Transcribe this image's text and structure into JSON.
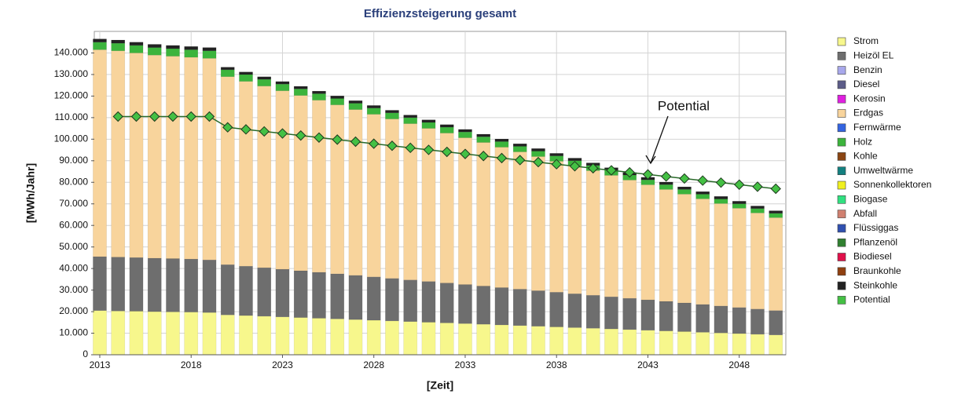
{
  "chart_data": {
    "type": "bar",
    "stacked": true,
    "title": "Effizienzsteigerung gesamt",
    "x_label": "[Zeit]",
    "y_label": "[MWh/Jahr]",
    "annotation": "Potential",
    "x": [
      2013,
      2014,
      2015,
      2016,
      2017,
      2018,
      2019,
      2020,
      2021,
      2022,
      2023,
      2024,
      2025,
      2026,
      2027,
      2028,
      2029,
      2030,
      2031,
      2032,
      2033,
      2034,
      2035,
      2036,
      2037,
      2038,
      2039,
      2040,
      2041,
      2042,
      2043,
      2044,
      2045,
      2046,
      2047,
      2048,
      2049,
      2050
    ],
    "xlim": [
      2012.7,
      2050.55
    ],
    "xticks": [
      2013,
      2018,
      2023,
      2028,
      2033,
      2038,
      2043,
      2048
    ],
    "ylim": [
      0,
      150000
    ],
    "yticks": [
      0,
      {
        "value": 10000,
        "label": "10.000"
      },
      {
        "value": 20000,
        "label": "20.000"
      },
      {
        "value": 30000,
        "label": "30.000"
      },
      {
        "value": 40000,
        "label": "40.000"
      },
      {
        "value": 50000,
        "label": "50.000"
      },
      {
        "value": 60000,
        "label": "60.000"
      },
      {
        "value": 70000,
        "label": "70.000"
      },
      {
        "value": 80000,
        "label": "80.000"
      },
      {
        "value": 90000,
        "label": "90.000"
      },
      {
        "value": 100000,
        "label": "100.000"
      },
      {
        "value": 110000,
        "label": "110.000"
      },
      {
        "value": 120000,
        "label": "120.000"
      },
      {
        "value": 130000,
        "label": "130.000"
      },
      {
        "value": 140000,
        "label": "140.000"
      }
    ],
    "grid": true,
    "legend": "right",
    "series": [
      {
        "name": "Strom",
        "color": "#f7f78c",
        "values": [
          20500,
          20300,
          20200,
          20000,
          19900,
          19800,
          19600,
          18500,
          18190,
          17880,
          17570,
          17260,
          16950,
          16640,
          16330,
          16020,
          15710,
          15400,
          15090,
          14780,
          14470,
          14160,
          13850,
          13540,
          13230,
          12920,
          12610,
          12300,
          11990,
          11680,
          11370,
          11060,
          10750,
          10440,
          10130,
          9820,
          9510,
          9200
        ]
      },
      {
        "name": "Heizöl EL",
        "color": "#6e6e6e",
        "values": [
          25000,
          25000,
          24900,
          24800,
          24700,
          24600,
          24400,
          23300,
          22900,
          22500,
          22100,
          21700,
          21300,
          20900,
          20500,
          20100,
          19700,
          19300,
          18900,
          18500,
          18100,
          17700,
          17300,
          16900,
          16500,
          16100,
          15700,
          15300,
          14900,
          14500,
          14100,
          13700,
          13300,
          12900,
          12500,
          12100,
          11700,
          11300
        ]
      },
      {
        "name": "Benzin",
        "color": "#a8a8ec"
      },
      {
        "name": "Diesel",
        "color": "#5c5c88"
      },
      {
        "name": "Kerosin",
        "color": "#e020e0"
      },
      {
        "name": "Erdgas",
        "color": "#f8d49c",
        "values": [
          96000,
          95700,
          94900,
          94200,
          93900,
          93600,
          93500,
          87200,
          85730,
          84260,
          82790,
          81320,
          79850,
          78380,
          76910,
          75440,
          73970,
          72500,
          71030,
          69560,
          68090,
          66620,
          65150,
          63680,
          62210,
          60740,
          59270,
          57800,
          56330,
          54860,
          53390,
          51920,
          50450,
          48980,
          47510,
          46040,
          44570,
          43100
        ]
      },
      {
        "name": "Fernwärme",
        "color": "#3464e0"
      },
      {
        "name": "Holz",
        "color": "#3cb43c",
        "values": [
          3500,
          3500,
          3500,
          3500,
          3500,
          3500,
          3500,
          3200,
          3160,
          3120,
          3080,
          3040,
          3000,
          2960,
          2920,
          2880,
          2840,
          2800,
          2760,
          2720,
          2680,
          2640,
          2600,
          2560,
          2520,
          2480,
          2440,
          2400,
          2360,
          2320,
          2280,
          2240,
          2200,
          2160,
          2120,
          2080,
          2040,
          2000
        ]
      },
      {
        "name": "Kohle",
        "color": "#8b4513"
      },
      {
        "name": "Umweltwärme",
        "color": "#138080"
      },
      {
        "name": "Sonnenkollektoren",
        "color": "#f0f020"
      },
      {
        "name": "Biogase",
        "color": "#30e080"
      },
      {
        "name": "Abfall",
        "color": "#d08070"
      },
      {
        "name": "Flüssiggas",
        "color": "#3050b0"
      },
      {
        "name": "Pflanzenöl",
        "color": "#308030"
      },
      {
        "name": "Biodiesel",
        "color": "#e0104a"
      },
      {
        "name": "Braunkohle",
        "color": "#904010"
      },
      {
        "name": "Steinkohle",
        "color": "#222222",
        "values": [
          1500,
          1500,
          1500,
          1500,
          1500,
          1500,
          1500,
          1200,
          1200,
          1200,
          1200,
          1200,
          1200,
          1200,
          1200,
          1200,
          1200,
          1200,
          1200,
          1200,
          1200,
          1200,
          1200,
          1200,
          1200,
          1200,
          1200,
          1200,
          1200,
          1200,
          1200,
          1200,
          1200,
          1200,
          1200,
          1200,
          1200,
          1200
        ]
      },
      {
        "name": "Potential",
        "color": "#44c044",
        "type": "line",
        "values": [
          null,
          110500,
          110500,
          110500,
          110500,
          110500,
          110500,
          105500,
          104550,
          103600,
          102650,
          101700,
          100750,
          99800,
          98850,
          97900,
          96950,
          96000,
          95050,
          94100,
          93150,
          92200,
          91250,
          90300,
          89350,
          88400,
          87450,
          86500,
          85550,
          84600,
          83650,
          82700,
          81750,
          80800,
          79850,
          78900,
          77950,
          77000
        ]
      }
    ]
  }
}
